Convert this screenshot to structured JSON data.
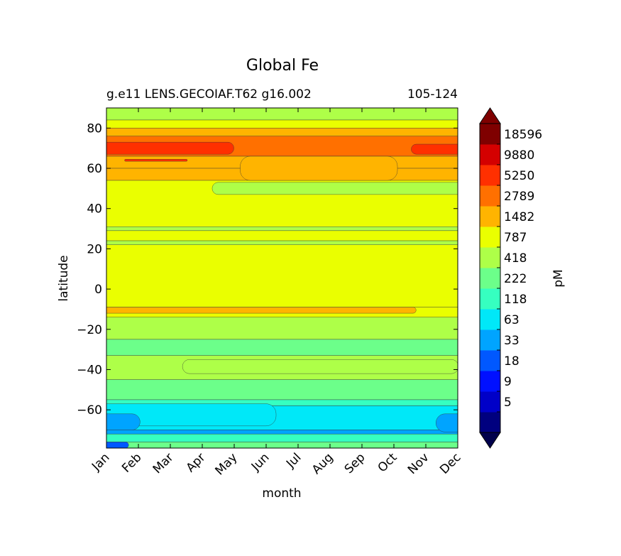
{
  "chart_data": {
    "type": "heatmap",
    "subtype": "filled-contour",
    "title": "Global Fe",
    "subtitle_left": "g.e11 LENS.GECOIAF.T62 g16.002",
    "subtitle_right": "105-124",
    "xlabel": "month",
    "ylabel": "latitude",
    "x_categories": [
      "Jan",
      "Feb",
      "Mar",
      "Apr",
      "May",
      "Jun",
      "Jul",
      "Aug",
      "Sep",
      "Oct",
      "Nov",
      "Dec"
    ],
    "xlim": [
      0,
      11
    ],
    "ylim": [
      -79,
      90
    ],
    "y_ticks": [
      80,
      60,
      40,
      20,
      0,
      -20,
      -40,
      -60
    ],
    "y_tick_labels": [
      "80",
      "60",
      "40",
      "20",
      "0",
      "−20",
      "−40",
      "−60"
    ],
    "colorbar": {
      "label": "pM",
      "extend": "both",
      "levels": [
        5,
        9,
        18,
        33,
        63,
        118,
        222,
        418,
        787,
        1482,
        2789,
        5250,
        9880,
        18596
      ],
      "level_labels": [
        "5",
        "9",
        "18",
        "33",
        "63",
        "118",
        "222",
        "418",
        "787",
        "1482",
        "2789",
        "5250",
        "9880",
        "18596"
      ],
      "colors": [
        "#00007f",
        "#0000c8",
        "#0010ff",
        "#0058ff",
        "#00a4ff",
        "#00e8f8",
        "#36ffc0",
        "#6cff8a",
        "#aeff48",
        "#eaff00",
        "#ffb400",
        "#ff7000",
        "#ff3000",
        "#d40000",
        "#7f0000"
      ],
      "under_color": "#00004c",
      "over_color": "#7f0000"
    },
    "bands": [
      {
        "lat_min": 84,
        "lat_max": 90,
        "value": 600
      },
      {
        "lat_min": 80,
        "lat_max": 84,
        "value": 1000
      },
      {
        "lat_min": 76,
        "lat_max": 80,
        "value": 2000
      },
      {
        "lat_min": 66,
        "lat_max": 76,
        "value": 4000
      },
      {
        "lat_min": 60,
        "lat_max": 66,
        "value": 2000
      },
      {
        "lat_min": 54,
        "lat_max": 60,
        "value": 2000
      },
      {
        "lat_min": 31,
        "lat_max": 54,
        "value": 1000
      },
      {
        "lat_min": 29,
        "lat_max": 31,
        "value": 600
      },
      {
        "lat_min": 24,
        "lat_max": 29,
        "value": 1000
      },
      {
        "lat_min": 22,
        "lat_max": 24,
        "value": 600
      },
      {
        "lat_min": -9,
        "lat_max": 22,
        "value": 1000
      },
      {
        "lat_min": -14,
        "lat_max": -9,
        "value": 1000
      },
      {
        "lat_min": -25,
        "lat_max": -14,
        "value": 600
      },
      {
        "lat_min": -33,
        "lat_max": -25,
        "value": 300
      },
      {
        "lat_min": -45,
        "lat_max": -33,
        "value": 600
      },
      {
        "lat_min": -55,
        "lat_max": -45,
        "value": 300
      },
      {
        "lat_min": -58,
        "lat_max": -55,
        "value": 160
      },
      {
        "lat_min": -70,
        "lat_max": -58,
        "value": 90
      },
      {
        "lat_min": -72,
        "lat_max": -70,
        "value": 45
      },
      {
        "lat_min": -76,
        "lat_max": -72,
        "value": 160
      },
      {
        "lat_min": -79,
        "lat_max": -76,
        "value": 300
      }
    ],
    "features": [
      {
        "name": "arctic-high-west",
        "x0": 0,
        "x1": 3.8,
        "lat_min": 67,
        "lat_max": 73,
        "value": 7000
      },
      {
        "name": "arctic-high-east",
        "x0": 9.7,
        "x1": 11,
        "lat_min": 67,
        "lat_max": 72,
        "value": 7000
      },
      {
        "name": "arctic-high-streak",
        "x0": 0.6,
        "x1": 2.5,
        "lat_min": 63.5,
        "lat_max": 64.5,
        "value": 7000
      },
      {
        "name": "subarctic-summer-dip",
        "x0": 4.5,
        "x1": 8.8,
        "lat_min": 54,
        "lat_max": 66,
        "value": 2000
      },
      {
        "name": "midlat-summer-band",
        "x0": 3.5,
        "x1": 11,
        "lat_min": 47,
        "lat_max": 53,
        "value": 600
      },
      {
        "name": "equatorial-high-band",
        "x0": 0,
        "x1": 9.6,
        "lat_min": -12,
        "lat_max": -9,
        "value": 2000
      },
      {
        "name": "southern-midlat-band",
        "x0": 2.6,
        "x1": 10.8,
        "lat_min": -42,
        "lat_max": -35,
        "value": 600
      },
      {
        "name": "southern-ocean-low",
        "x0": 0,
        "x1": 5.0,
        "lat_min": -68,
        "lat_max": -57,
        "value": 90
      },
      {
        "name": "antarctic-low-west",
        "x0": 0,
        "x1": 0.8,
        "lat_min": -70,
        "lat_max": -62,
        "value": 45
      },
      {
        "name": "antarctic-low-east",
        "x0": 10.6,
        "x1": 11,
        "lat_min": -71,
        "lat_max": -62,
        "value": 45
      },
      {
        "name": "antarctic-lowest",
        "x0": 0,
        "x1": 0.6,
        "lat_min": -79,
        "lat_max": -76,
        "value": 20
      }
    ]
  }
}
